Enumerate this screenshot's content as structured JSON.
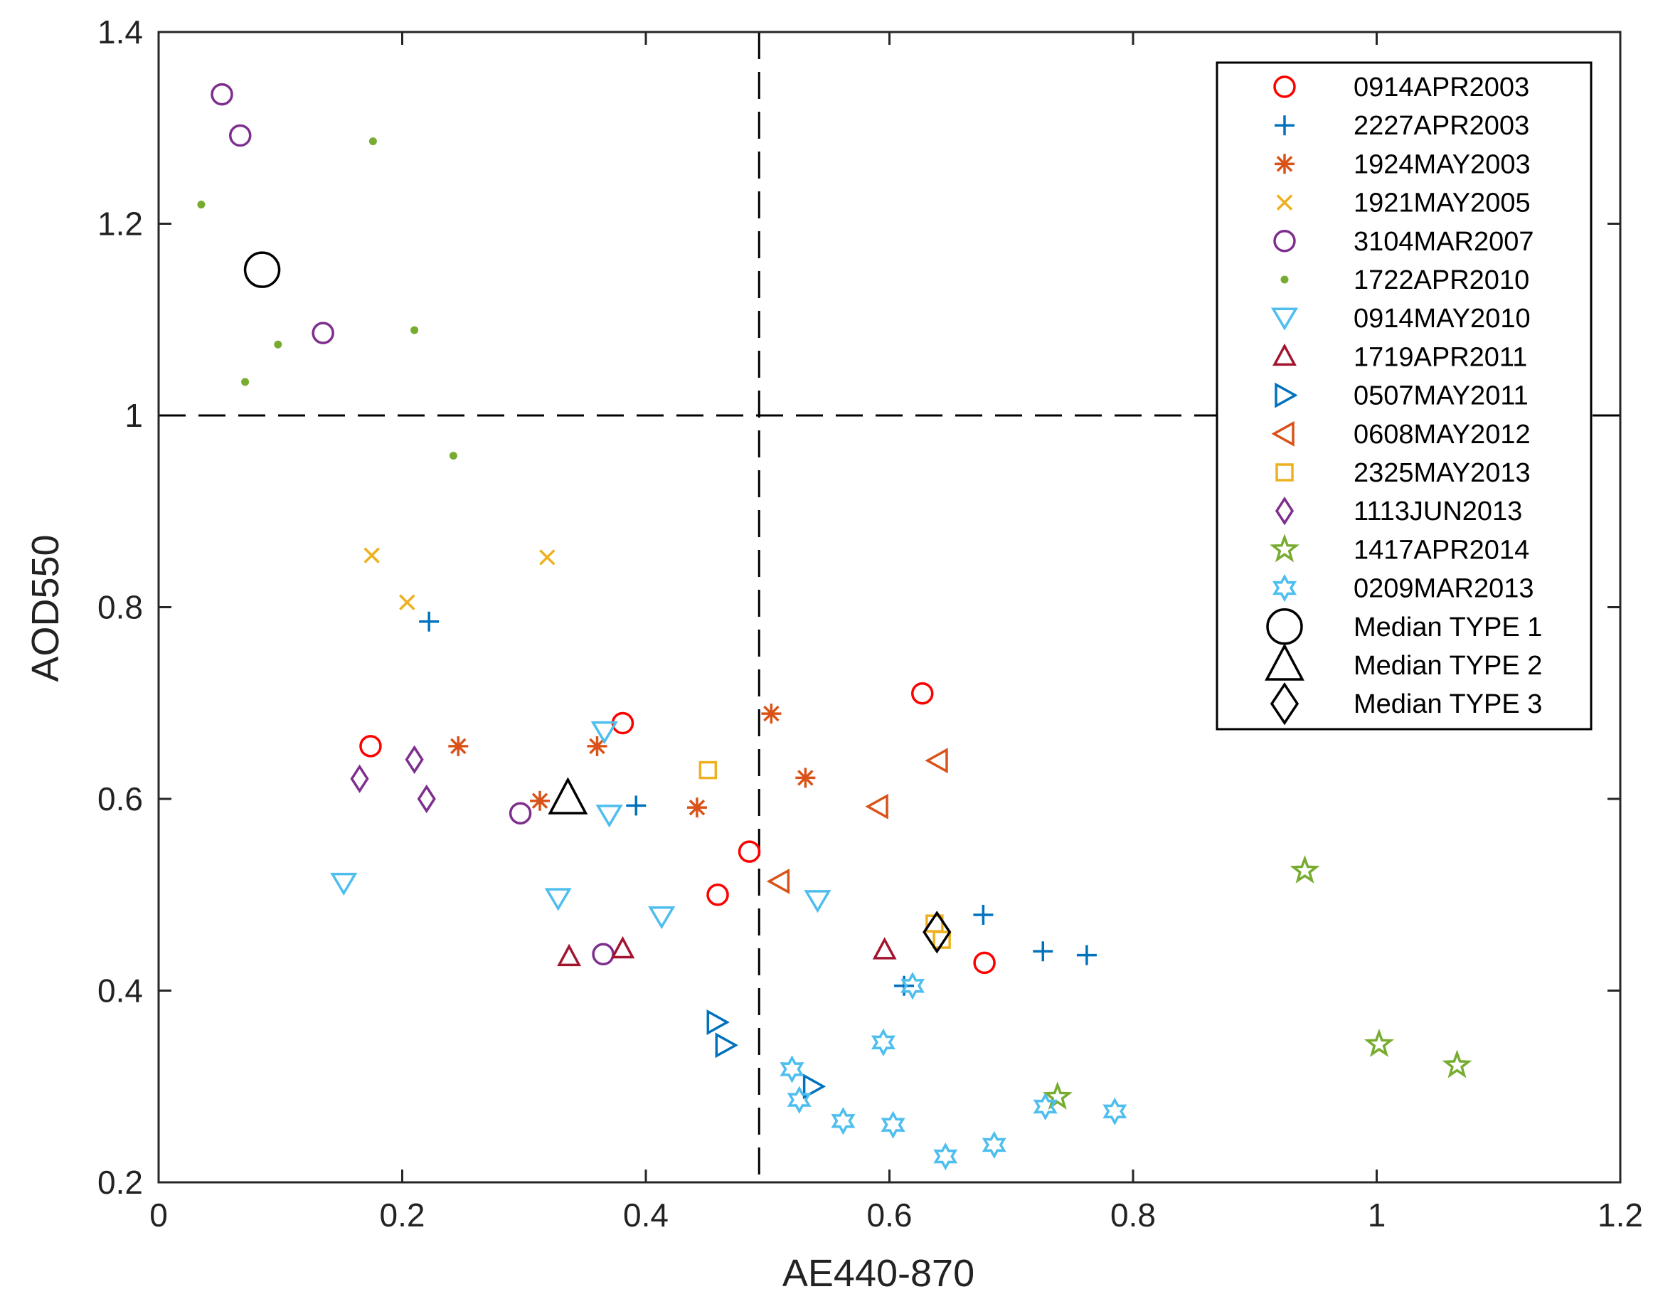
{
  "chart_data": {
    "type": "scatter",
    "xlabel": "AE440-870",
    "ylabel": "AOD550",
    "xlim": [
      0,
      1.2
    ],
    "ylim": [
      0.2,
      1.4
    ],
    "xticks": [
      0,
      0.2,
      0.4,
      0.6,
      0.8,
      1,
      1.2
    ],
    "xtick_labels": [
      "0",
      "0.2",
      "0.4",
      "0.6",
      "0.8",
      "1",
      "1.2"
    ],
    "yticks": [
      0.2,
      0.4,
      0.6,
      0.8,
      1,
      1.2,
      1.4
    ],
    "ytick_labels": [
      "0.2",
      "0.4",
      "0.6",
      "0.8",
      "1",
      "1.2",
      "1.4"
    ],
    "reference_lines": [
      {
        "orientation": "vertical",
        "value": 0.493,
        "style": "dashed"
      },
      {
        "orientation": "horizontal",
        "value": 1.0,
        "style": "dashed"
      }
    ],
    "legend_position": "top-right",
    "series": [
      {
        "name": "0914APR2003",
        "marker": "circle",
        "color": "#ff0000",
        "points": [
          [
            0.174,
            0.655
          ],
          [
            0.381,
            0.679
          ],
          [
            0.627,
            0.71
          ],
          [
            0.485,
            0.545
          ],
          [
            0.459,
            0.5
          ],
          [
            0.678,
            0.429
          ]
        ]
      },
      {
        "name": "2227APR2003",
        "marker": "plus",
        "color": "#0072bd",
        "points": [
          [
            0.222,
            0.785
          ],
          [
            0.392,
            0.593
          ],
          [
            0.677,
            0.479
          ],
          [
            0.726,
            0.441
          ],
          [
            0.762,
            0.437
          ],
          [
            0.612,
            0.405
          ]
        ]
      },
      {
        "name": "1924MAY2003",
        "marker": "asterisk",
        "color": "#d95319",
        "points": [
          [
            0.246,
            0.655
          ],
          [
            0.36,
            0.655
          ],
          [
            0.313,
            0.598
          ],
          [
            0.442,
            0.591
          ],
          [
            0.503,
            0.689
          ],
          [
            0.531,
            0.622
          ]
        ]
      },
      {
        "name": "1921MAY2005",
        "marker": "x",
        "color": "#edb120",
        "points": [
          [
            0.175,
            0.854
          ],
          [
            0.204,
            0.805
          ],
          [
            0.319,
            0.852
          ]
        ]
      },
      {
        "name": "3104MAR2007",
        "marker": "circle",
        "color": "#7e2f8e",
        "points": [
          [
            0.052,
            1.335
          ],
          [
            0.067,
            1.292
          ],
          [
            0.135,
            1.086
          ],
          [
            0.297,
            0.585
          ],
          [
            0.365,
            0.438
          ]
        ]
      },
      {
        "name": "1722APR2010",
        "marker": "dot",
        "color": "#77ac30",
        "points": [
          [
            0.035,
            1.22
          ],
          [
            0.176,
            1.286
          ],
          [
            0.098,
            1.074
          ],
          [
            0.21,
            1.089
          ],
          [
            0.071,
            1.035
          ],
          [
            0.242,
            0.958
          ]
        ]
      },
      {
        "name": "0914MAY2010",
        "marker": "triangle-down",
        "color": "#4dbeee",
        "points": [
          [
            0.366,
            0.67
          ],
          [
            0.37,
            0.583
          ],
          [
            0.152,
            0.512
          ],
          [
            0.328,
            0.496
          ],
          [
            0.413,
            0.477
          ],
          [
            0.541,
            0.494
          ]
        ]
      },
      {
        "name": "1719APR2011",
        "marker": "triangle-up",
        "color": "#a2142f",
        "points": [
          [
            0.337,
            0.435
          ],
          [
            0.381,
            0.443
          ],
          [
            0.596,
            0.442
          ]
        ]
      },
      {
        "name": "0507MAY2011",
        "marker": "triangle-right",
        "color": "#0072bd",
        "points": [
          [
            0.458,
            0.367
          ],
          [
            0.465,
            0.343
          ],
          [
            0.537,
            0.3
          ]
        ]
      },
      {
        "name": "0608MAY2012",
        "marker": "triangle-left",
        "color": "#d95319",
        "points": [
          [
            0.64,
            0.64
          ],
          [
            0.591,
            0.592
          ],
          [
            0.51,
            0.514
          ]
        ]
      },
      {
        "name": "2325MAY2013",
        "marker": "square",
        "color": "#edb120",
        "points": [
          [
            0.451,
            0.63
          ],
          [
            0.637,
            0.47
          ],
          [
            0.643,
            0.453
          ]
        ]
      },
      {
        "name": "1113JUN2013",
        "marker": "diamond",
        "color": "#7e2f8e",
        "points": [
          [
            0.165,
            0.621
          ],
          [
            0.21,
            0.641
          ],
          [
            0.22,
            0.6
          ]
        ]
      },
      {
        "name": "1417APR2014",
        "marker": "pentagram",
        "color": "#77ac30",
        "points": [
          [
            0.941,
            0.525
          ],
          [
            1.002,
            0.344
          ],
          [
            1.066,
            0.322
          ],
          [
            0.738,
            0.289
          ]
        ]
      },
      {
        "name": "0209MAR2013",
        "marker": "hexagram",
        "color": "#4dbeee",
        "points": [
          [
            0.619,
            0.405
          ],
          [
            0.595,
            0.346
          ],
          [
            0.52,
            0.318
          ],
          [
            0.526,
            0.286
          ],
          [
            0.562,
            0.264
          ],
          [
            0.603,
            0.26
          ],
          [
            0.646,
            0.227
          ],
          [
            0.686,
            0.239
          ],
          [
            0.728,
            0.279
          ],
          [
            0.785,
            0.274
          ]
        ]
      },
      {
        "name": "Median TYPE 1",
        "marker": "circle-large",
        "color": "#000000",
        "points": [
          [
            0.085,
            1.152
          ]
        ]
      },
      {
        "name": "Median TYPE 2",
        "marker": "triangle-up-large",
        "color": "#000000",
        "points": [
          [
            0.336,
            0.6
          ]
        ]
      },
      {
        "name": "Median TYPE 3",
        "marker": "diamond-large",
        "color": "#000000",
        "points": [
          [
            0.639,
            0.461
          ]
        ]
      }
    ]
  }
}
